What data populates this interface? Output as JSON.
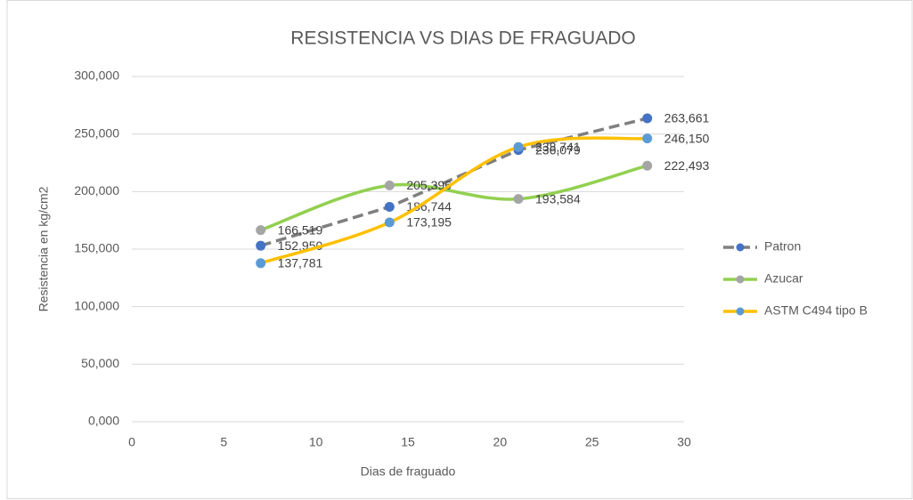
{
  "chart_data": {
    "type": "line",
    "title": "RESISTENCIA VS DIAS DE FRAGUADO",
    "x_label": "Dias de fraguado",
    "y_label": "Resistencia en kg/cm2",
    "xlim": [
      0,
      30
    ],
    "xticks": [
      0,
      5,
      10,
      15,
      20,
      25,
      30
    ],
    "ylim": [
      0,
      300
    ],
    "yticks": [
      {
        "value": 0,
        "label": "0,000"
      },
      {
        "value": 50,
        "label": "50,000"
      },
      {
        "value": 100,
        "label": "100,000"
      },
      {
        "value": 150,
        "label": "150,000"
      },
      {
        "value": 200,
        "label": "200,000"
      },
      {
        "value": 250,
        "label": "250,000"
      },
      {
        "value": 300,
        "label": "300,000"
      }
    ],
    "grid": true,
    "legend": "right",
    "x": [
      7,
      14,
      21,
      28
    ],
    "series": [
      {
        "name": "Patron",
        "color": "#7f7f7f",
        "marker_color": "#4472c4",
        "dashed": true,
        "smooth": false,
        "values": [
          152.95,
          186.744,
          236.079,
          263.661
        ],
        "value_labels": [
          "152,950",
          "186,744",
          "236,079",
          "263,661"
        ]
      },
      {
        "name": "Azucar",
        "color": "#92d050",
        "marker_color": "#a5a5a5",
        "dashed": false,
        "smooth": true,
        "values": [
          166.519,
          205.396,
          193.584,
          222.493
        ],
        "value_labels": [
          "166,519",
          "205,396",
          "193,584",
          "222,493"
        ]
      },
      {
        "name": "ASTM C494 tipo B",
        "color": "#ffc000",
        "marker_color": "#5b9bd5",
        "dashed": false,
        "smooth": true,
        "values": [
          137.781,
          173.195,
          238.741,
          246.15
        ],
        "value_labels": [
          "137,781",
          "173,195",
          "238,741",
          "246,150"
        ]
      }
    ]
  }
}
